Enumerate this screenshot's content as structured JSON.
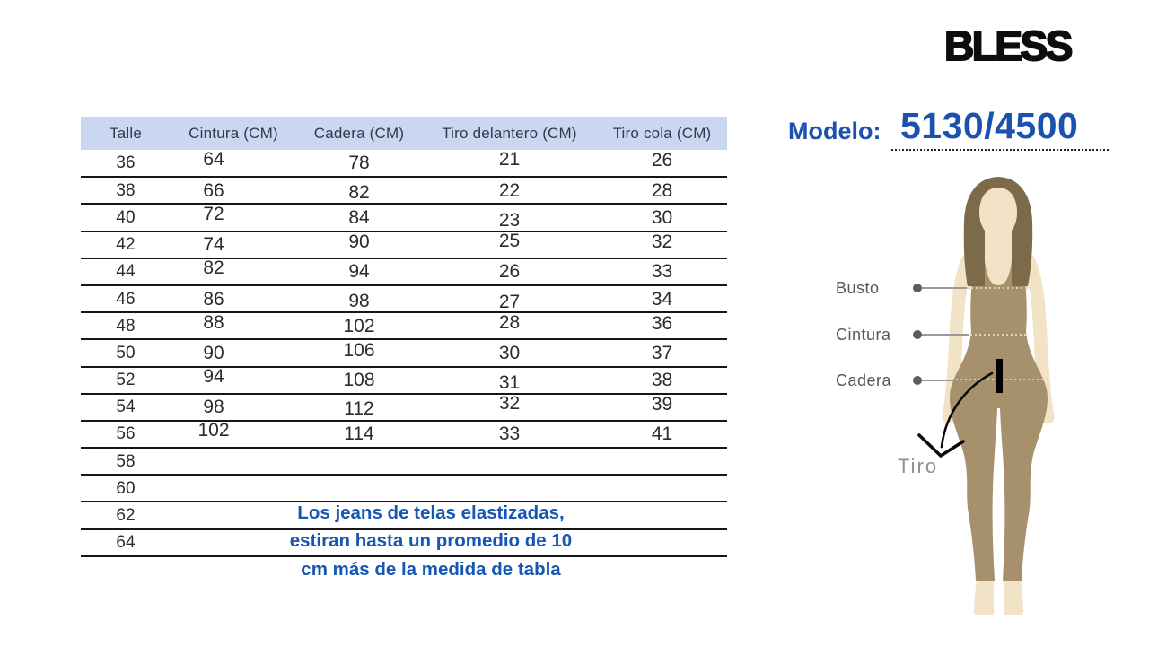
{
  "brand": {
    "logo": "BLESS"
  },
  "model": {
    "label": "Modelo:",
    "number": "5130/4500"
  },
  "table": {
    "headers": [
      "Talle",
      "Cintura (CM)",
      "Cadera (CM)",
      "Tiro delantero (CM)",
      "Tiro cola (CM)"
    ],
    "rows": [
      [
        "36",
        "64",
        "78",
        "21",
        "26"
      ],
      [
        "38",
        "66",
        "82",
        "22",
        "28"
      ],
      [
        "40",
        "72",
        "84",
        "23",
        "30"
      ],
      [
        "42",
        "74",
        "90",
        "25",
        "32"
      ],
      [
        "44",
        "82",
        "94",
        "26",
        "33"
      ],
      [
        "46",
        "86",
        "98",
        "27",
        "34"
      ],
      [
        "48",
        "88",
        "102",
        "28",
        "36"
      ],
      [
        "50",
        "90",
        "106",
        "30",
        "37"
      ],
      [
        "52",
        "94",
        "108",
        "31",
        "38"
      ],
      [
        "54",
        "98",
        "112",
        "32",
        "39"
      ],
      [
        "56",
        "102",
        "114",
        "33",
        "41"
      ],
      [
        "58",
        "",
        "",
        "",
        ""
      ],
      [
        "60",
        "",
        "",
        "",
        ""
      ],
      [
        "62",
        "",
        "",
        "",
        ""
      ],
      [
        "64",
        "",
        "",
        "",
        ""
      ]
    ]
  },
  "note": {
    "lines": [
      "Los jeans de telas elastizadas,",
      "estiran hasta un promedio de 10",
      "cm más de la medida de tabla"
    ]
  },
  "figure": {
    "measurements": [
      {
        "label": "Busto"
      },
      {
        "label": "Cintura"
      },
      {
        "label": "Cadera"
      }
    ],
    "tiro_label": "Tiro"
  },
  "colors": {
    "accent_blue": "#1b52ad",
    "note_blue": "#1557b4",
    "table_header_bg": "#c9d8f0",
    "table_header_text": "#2e3a4e",
    "skin": "#f2e3c6",
    "bodysuit": "#a7916d",
    "hair": "#7d6a49",
    "label_gray": "#585858"
  }
}
